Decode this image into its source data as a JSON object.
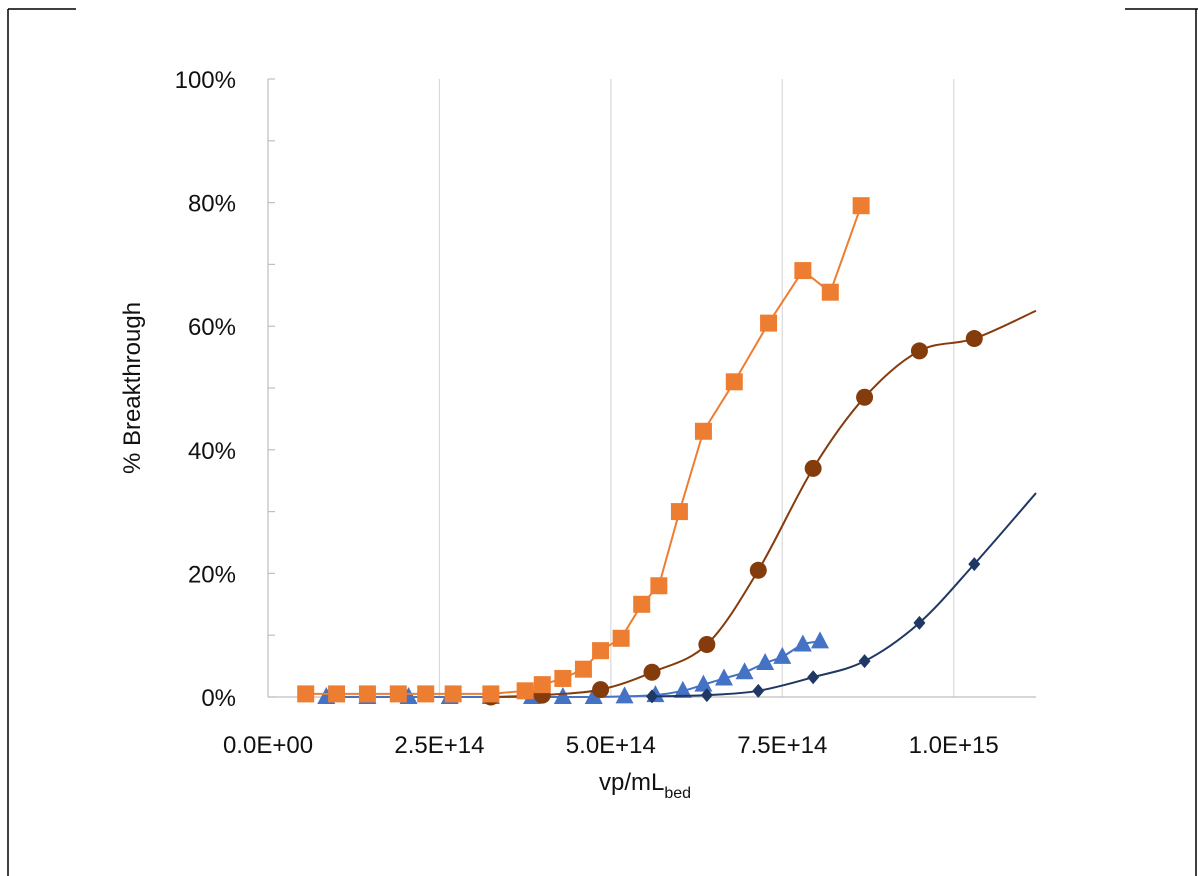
{
  "chart_data": {
    "type": "scatter",
    "title": "",
    "ylabel": "% Breakthrough",
    "xlabel": {
      "main": "vp/mL",
      "subscript": "bed"
    },
    "xlim": [
      0,
      1120000000000000.0
    ],
    "ylim": [
      0,
      100
    ],
    "x_ticks": [
      {
        "value": 0,
        "label": "0.0E+00"
      },
      {
        "value": 250000000000000.0,
        "label": "2.5E+14"
      },
      {
        "value": 500000000000000.0,
        "label": "5.0E+14"
      },
      {
        "value": 750000000000000.0,
        "label": "7.5E+14"
      },
      {
        "value": 1000000000000000.0,
        "label": "1.0E+15"
      }
    ],
    "y_ticks": [
      {
        "value": 0,
        "label": "0%"
      },
      {
        "value": 20,
        "label": "20%"
      },
      {
        "value": 40,
        "label": "40%"
      },
      {
        "value": 60,
        "label": "60%"
      },
      {
        "value": 80,
        "label": "80%"
      },
      {
        "value": 100,
        "label": "100%"
      }
    ],
    "grid": {
      "vertical": true,
      "horizontal": false
    },
    "legend": "none",
    "series": [
      {
        "marker": "square",
        "color": "#ED7D31",
        "line": "straight",
        "x": [
          55000000000000.0,
          100000000000000.0,
          145000000000000.0,
          190000000000000.0,
          230000000000000.0,
          270000000000000.0,
          325000000000000.0,
          375000000000000.0,
          400000000000000.0,
          430000000000000.0,
          460000000000000.0,
          485000000000000.0,
          515000000000000.0,
          545000000000000.0,
          570000000000000.0,
          600000000000000.0,
          635000000000000.0,
          680000000000000.0,
          730000000000000.0,
          780000000000000.0,
          820000000000000.0,
          865000000000000.0
        ],
        "y": [
          0.5,
          0.5,
          0.5,
          0.5,
          0.5,
          0.5,
          0.5,
          1,
          2,
          3,
          4.5,
          7.5,
          9.5,
          15,
          18,
          30,
          43,
          51,
          60.5,
          69,
          65.5,
          79.5
        ]
      },
      {
        "marker": "circle",
        "color": "#843C0C",
        "line": "smooth",
        "x": [
          325000000000000.0,
          400000000000000.0,
          485000000000000.0,
          560000000000000.0,
          640000000000000.0,
          715000000000000.0,
          795000000000000.0,
          870000000000000.0,
          950000000000000.0,
          1030000000000000.0,
          1120000000000000.0
        ],
        "y": [
          0,
          0.3,
          1.2,
          4,
          8.5,
          20.5,
          37,
          48.5,
          56,
          58,
          62.5
        ],
        "marker_count": 10
      },
      {
        "marker": "triangle",
        "color": "#4472C4",
        "line": "smooth",
        "x": [
          85000000000000.0,
          145000000000000.0,
          205000000000000.0,
          265000000000000.0,
          325000000000000.0,
          385000000000000.0,
          430000000000000.0,
          475000000000000.0,
          520000000000000.0,
          565000000000000.0,
          605000000000000.0,
          635000000000000.0,
          665000000000000.0,
          695000000000000.0,
          725000000000000.0,
          750000000000000.0,
          780000000000000.0,
          805000000000000.0
        ],
        "y": [
          0,
          0,
          0,
          0,
          0,
          0,
          0,
          0,
          0.1,
          0.3,
          1,
          2,
          3,
          4,
          5.5,
          6.5,
          8.5,
          9
        ]
      },
      {
        "marker": "diamond",
        "color": "#203864",
        "line": "smooth",
        "x": [
          560000000000000.0,
          640000000000000.0,
          715000000000000.0,
          795000000000000.0,
          870000000000000.0,
          950000000000000.0,
          1030000000000000.0,
          1120000000000000.0
        ],
        "y": [
          0.1,
          0.3,
          1,
          3.2,
          5.8,
          12,
          21.5,
          33
        ],
        "marker_count": 7
      }
    ]
  }
}
